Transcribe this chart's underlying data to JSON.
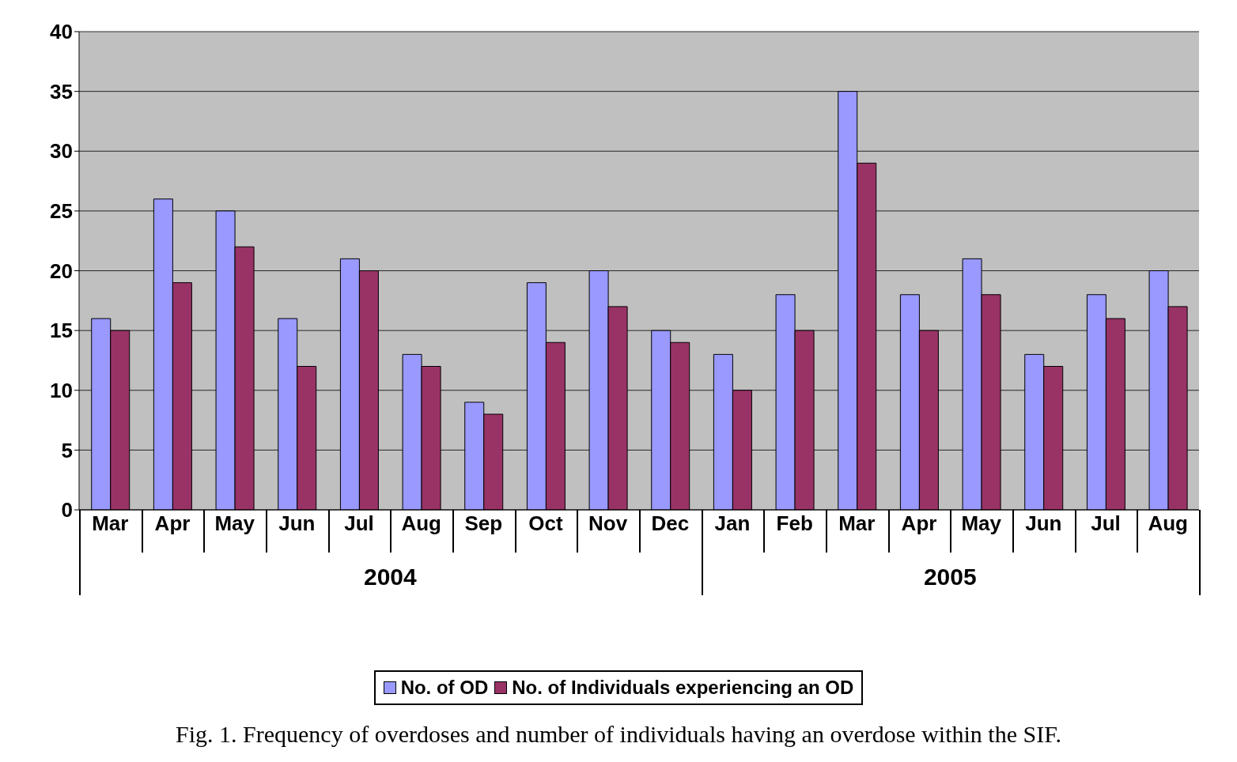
{
  "chart_data": {
    "type": "bar",
    "categories": [
      "Mar",
      "Apr",
      "May",
      "Jun",
      "Jul",
      "Aug",
      "Sep",
      "Oct",
      "Nov",
      "Dec",
      "Jan",
      "Feb",
      "Mar",
      "Apr",
      "May",
      "Jun",
      "Jul",
      "Aug"
    ],
    "series": [
      {
        "name": "No. of OD",
        "color": "#9999ff",
        "values": [
          16,
          26,
          25,
          16,
          21,
          13,
          9,
          19,
          20,
          15,
          13,
          18,
          35,
          18,
          21,
          13,
          18,
          20
        ]
      },
      {
        "name": "No. of Individuals experiencing an OD",
        "color": "#993366",
        "values": [
          15,
          19,
          22,
          12,
          20,
          12,
          8,
          14,
          17,
          14,
          10,
          15,
          29,
          15,
          18,
          12,
          16,
          17
        ]
      }
    ],
    "ylim": [
      0,
      40
    ],
    "yticks": [
      0,
      5,
      10,
      15,
      20,
      25,
      30,
      35,
      40
    ],
    "grid": "y",
    "legend": "bottom",
    "annotations": [
      "2004",
      "2005",
      "Fig. 1. Frequency of overdoses and number of individuals having an overdose within the SIF."
    ]
  }
}
